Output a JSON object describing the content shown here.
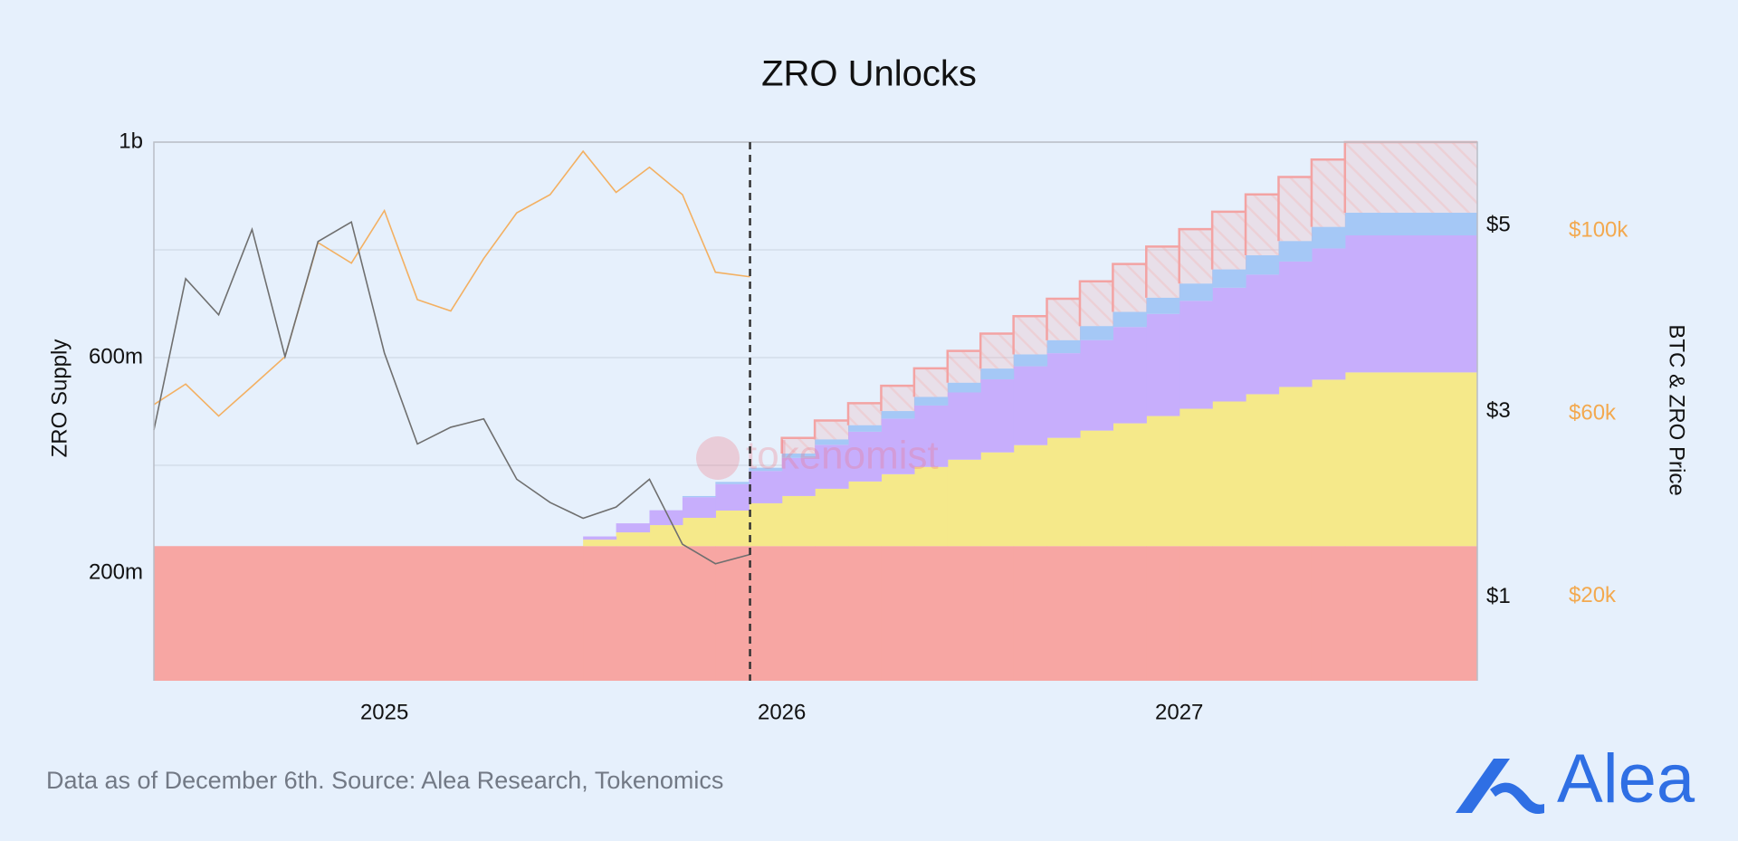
{
  "chart_data": {
    "type": "step-area",
    "title": "ZRO Unlocks",
    "y_label": "ZRO Supply",
    "y2_label": "BTC & ZRO Price",
    "watermark": "tokenomist",
    "xlim": [
      2024.42,
      2027.75
    ],
    "xticks": [
      2025,
      2026,
      2027
    ],
    "ylim": [
      0,
      1000000000
    ],
    "yticks": [
      {
        "value": 200000000,
        "label": "200m"
      },
      {
        "value": 600000000,
        "label": "600m"
      },
      {
        "value": 1000000000,
        "label": "1b"
      }
    ],
    "minor_yticks": [
      400000000,
      800000000
    ],
    "y2lim": [
      0.1,
      5.9
    ],
    "y2ticks": [
      {
        "value": 1,
        "label": "$1"
      },
      {
        "value": 3,
        "label": "$3"
      },
      {
        "value": 5,
        "label": "$5"
      }
    ],
    "y2tick_color": "#111111",
    "y3lim": [
      1500,
      119500
    ],
    "y3ticks": [
      {
        "value": 20000,
        "label": "$20k"
      },
      {
        "value": 60000,
        "label": "$60k"
      },
      {
        "value": 100000,
        "label": "$100k"
      }
    ],
    "y3tick_color": "#f3a94f",
    "grid": true,
    "marker_x": 2025.92,
    "x": [
      2024.42,
      2025.5,
      2025.583,
      2025.667,
      2025.75,
      2025.833,
      2025.917,
      2026,
      2026.083,
      2026.167,
      2026.25,
      2026.333,
      2026.417,
      2026.5,
      2026.583,
      2026.667,
      2026.75,
      2026.833,
      2026.917,
      2027,
      2027.083,
      2027.167,
      2027.25,
      2027.333,
      2027.417
    ],
    "series": [
      {
        "color": "#f7a6a3",
        "values": [
          250000000,
          250000000,
          250000000,
          250000000,
          250000000,
          250000000,
          250000000,
          250000000,
          250000000,
          250000000,
          250000000,
          250000000,
          250000000,
          250000000,
          250000000,
          250000000,
          250000000,
          250000000,
          250000000,
          250000000,
          250000000,
          250000000,
          250000000,
          250000000,
          250000000
        ]
      },
      {
        "color": "#f5e98a",
        "values": [
          0,
          12000000,
          25500000,
          39000000,
          52500000,
          66000000,
          79500000,
          93000000,
          106500000,
          120000000,
          133500000,
          147000000,
          160500000,
          174000000,
          187500000,
          201000000,
          214500000,
          228000000,
          241500000,
          255000000,
          268500000,
          282000000,
          295500000,
          309000000,
          322500000
        ]
      },
      {
        "color": "#c7aefc",
        "values": [
          0,
          6000000,
          16800000,
          27600000,
          38400000,
          49200000,
          60000000,
          70800000,
          81600000,
          92400000,
          103200000,
          114000000,
          124800000,
          135600000,
          146400000,
          157200000,
          168000000,
          178800000,
          189600000,
          200400000,
          211200000,
          222000000,
          232800000,
          243600000,
          254400000
        ]
      },
      {
        "color": "#a5c8f6",
        "values": [
          0,
          0,
          0,
          0,
          2000000,
          4000000,
          6000000,
          8000000,
          10000000,
          12000000,
          14000000,
          16000000,
          18000000,
          20000000,
          22000000,
          24000000,
          26000000,
          28000000,
          30000000,
          32000000,
          34000000,
          36000000,
          38000000,
          40000000,
          42000000
        ]
      },
      {
        "color": "#f3a3a3",
        "hatch": true,
        "values": [
          0,
          0,
          0,
          0,
          0,
          0,
          0,
          29000000,
          35000000,
          41000000,
          47000000,
          53000000,
          59000000,
          65000000,
          71000000,
          77000000,
          83000000,
          89000000,
          95000000,
          101000000,
          107000000,
          113000000,
          119000000,
          125000000,
          131000000
        ]
      }
    ],
    "lines": [
      {
        "color": "#f3b062",
        "axis": "y3",
        "x": [
          2024.42,
          2024.5,
          2024.583,
          2024.667,
          2024.75,
          2024.833,
          2024.917,
          2025,
          2025.083,
          2025.167,
          2025.25,
          2025.333,
          2025.417,
          2025.5,
          2025.583,
          2025.667,
          2025.75,
          2025.833,
          2025.92
        ],
        "values": [
          62000,
          66500,
          59500,
          66000,
          72500,
          97500,
          93000,
          104500,
          85000,
          82500,
          94000,
          104000,
          108000,
          117500,
          108500,
          114000,
          108000,
          91000,
          90000
        ]
      },
      {
        "color": "#6f6f6f",
        "axis": "y2",
        "x": [
          2024.42,
          2024.5,
          2024.583,
          2024.667,
          2024.75,
          2024.833,
          2024.917,
          2025,
          2025.083,
          2025.167,
          2025.25,
          2025.333,
          2025.417,
          2025.5,
          2025.583,
          2025.667,
          2025.75,
          2025.833,
          2025.92
        ],
        "values": [
          2.8,
          4.43,
          4.04,
          4.96,
          3.59,
          4.83,
          5.04,
          3.63,
          2.65,
          2.83,
          2.92,
          2.27,
          2.02,
          1.85,
          1.97,
          2.27,
          1.57,
          1.36,
          1.46
        ]
      }
    ]
  },
  "footer": {
    "source": "Data as of December 6th. Source: Alea Research, Tokenomics"
  },
  "logo": {
    "text": "Alea"
  }
}
